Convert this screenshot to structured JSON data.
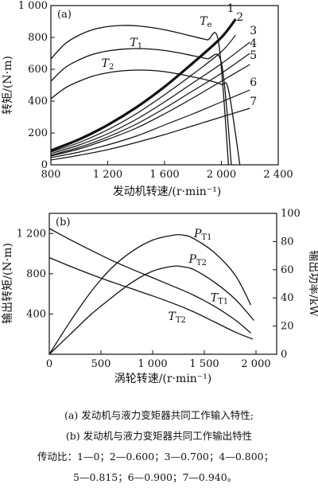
{
  "chart_data": [
    {
      "type": "line",
      "panel_label": "(a)",
      "xlabel": "发动机转速/(r·min⁻¹)",
      "ylabel": "转矩/(N·m)",
      "xlim": [
        800,
        2400
      ],
      "ylim": [
        0,
        1000
      ],
      "xticks": [
        800,
        1200,
        1600,
        2000,
        2400
      ],
      "xtick_labels": [
        "800",
        "1 200",
        "1 600",
        "2 000",
        "2 400"
      ],
      "yticks": [
        0,
        200,
        400,
        600,
        800,
        1000
      ],
      "ytick_labels": [
        "0",
        "200",
        "400",
        "600",
        "800",
        "1 000"
      ],
      "engine_curves": [
        {
          "label": "Te",
          "label_at": [
            1890,
            880
          ],
          "points": [
            [
              800,
              665
            ],
            [
              900,
              760
            ],
            [
              1000,
              815
            ],
            [
              1100,
              850
            ],
            [
              1200,
              868
            ],
            [
              1300,
              875
            ],
            [
              1400,
              873
            ],
            [
              1500,
              863
            ],
            [
              1600,
              848
            ],
            [
              1700,
              828
            ],
            [
              1800,
              806
            ],
            [
              1900,
              785
            ],
            [
              1980,
              770
            ],
            [
              2050,
              0
            ]
          ]
        },
        {
          "label": "T1",
          "label_at": [
            1400,
            745
          ],
          "points": [
            [
              800,
              525
            ],
            [
              900,
              610
            ],
            [
              1000,
              660
            ],
            [
              1100,
              695
            ],
            [
              1200,
              715
            ],
            [
              1300,
              726
            ],
            [
              1400,
              730
            ],
            [
              1500,
              727
            ],
            [
              1600,
              718
            ],
            [
              1700,
              703
            ],
            [
              1800,
              685
            ],
            [
              1900,
              666
            ],
            [
              2000,
              640
            ],
            [
              2070,
              0
            ]
          ]
        },
        {
          "label": "T2",
          "label_at": [
            1200,
            615
          ],
          "points": [
            [
              800,
              415
            ],
            [
              900,
              482
            ],
            [
              1000,
              525
            ],
            [
              1100,
              558
            ],
            [
              1200,
              578
            ],
            [
              1300,
              590
            ],
            [
              1400,
              595
            ],
            [
              1500,
              593
            ],
            [
              1600,
              585
            ],
            [
              1700,
              570
            ],
            [
              1800,
              552
            ],
            [
              1900,
              532
            ],
            [
              2000,
              505
            ],
            [
              2050,
              470
            ],
            [
              2130,
              0
            ]
          ]
        }
      ],
      "load_curves": [
        {
          "label": "1",
          "thick": true,
          "label_at": [
            2065,
            960
          ],
          "points": [
            [
              800,
              90
            ],
            [
              1000,
              160
            ],
            [
              1200,
              250
            ],
            [
              1400,
              360
            ],
            [
              1600,
              490
            ],
            [
              1800,
              640
            ],
            [
              2000,
              800
            ],
            [
              2100,
              915
            ]
          ]
        },
        {
          "label": "2",
          "label_at": [
            2130,
            905
          ],
          "points": [
            [
              800,
              80
            ],
            [
              1000,
              140
            ],
            [
              1200,
              220
            ],
            [
              1400,
              320
            ],
            [
              1600,
              440
            ],
            [
              1800,
              570
            ],
            [
              2000,
              710
            ],
            [
              2100,
              815
            ]
          ]
        },
        {
          "label": "3",
          "label_at": [
            2225,
            820
          ],
          "points": [
            [
              800,
              70
            ],
            [
              1000,
              125
            ],
            [
              1200,
              195
            ],
            [
              1400,
              285
            ],
            [
              1600,
              395
            ],
            [
              1800,
              515
            ],
            [
              2000,
              635
            ],
            [
              2200,
              770
            ]
          ]
        },
        {
          "label": "4",
          "label_at": [
            2225,
            740
          ],
          "points": [
            [
              800,
              60
            ],
            [
              1000,
              110
            ],
            [
              1200,
              175
            ],
            [
              1400,
              255
            ],
            [
              1600,
              355
            ],
            [
              1800,
              465
            ],
            [
              2000,
              575
            ],
            [
              2200,
              700
            ]
          ]
        },
        {
          "label": "5",
          "label_at": [
            2225,
            665
          ],
          "points": [
            [
              800,
              55
            ],
            [
              1000,
              100
            ],
            [
              1200,
              160
            ],
            [
              1400,
              230
            ],
            [
              1600,
              320
            ],
            [
              1800,
              420
            ],
            [
              2000,
              525
            ],
            [
              2200,
              630
            ]
          ]
        },
        {
          "label": "6",
          "label_at": [
            2225,
            495
          ],
          "points": [
            [
              800,
              45
            ],
            [
              1000,
              80
            ],
            [
              1200,
              125
            ],
            [
              1400,
              180
            ],
            [
              1600,
              250
            ],
            [
              1800,
              320
            ],
            [
              2000,
              395
            ],
            [
              2200,
              470
            ]
          ]
        },
        {
          "label": "7",
          "label_at": [
            2225,
            375
          ],
          "points": [
            [
              800,
              30
            ],
            [
              1000,
              60
            ],
            [
              1200,
              95
            ],
            [
              1400,
              140
            ],
            [
              1600,
              190
            ],
            [
              1800,
              245
            ],
            [
              2000,
              300
            ],
            [
              2200,
              355
            ]
          ]
        }
      ]
    },
    {
      "type": "line",
      "panel_label": "(b)",
      "xlabel": "涡轮转速/(r·min⁻¹)",
      "ylabel": "输出转矩/(N·m)",
      "ylabel_right": "输出功率/kW",
      "xlim": [
        0,
        2200
      ],
      "ylim": [
        0,
        1400
      ],
      "ylim_right": [
        0,
        100
      ],
      "xticks": [
        0,
        500,
        1000,
        1500,
        2000
      ],
      "xtick_labels": [
        "0",
        "500",
        "1 000",
        "1 500",
        "2 000"
      ],
      "yticks": [
        400,
        800,
        1200
      ],
      "ytick_labels": [
        "400",
        "800",
        "1 200"
      ],
      "yticks_right": [
        0,
        20,
        40,
        60,
        80,
        100
      ],
      "ytick_labels_right": [
        "0",
        "20",
        "40",
        "60",
        "80",
        "100"
      ],
      "series": [
        {
          "name": "PT1",
          "label_main": "P",
          "label_sub": "T1",
          "axis": "right",
          "label_at": [
            1400,
            83
          ],
          "points": [
            [
              0,
              0
            ],
            [
              200,
              23
            ],
            [
              400,
              44
            ],
            [
              600,
              61
            ],
            [
              800,
              73
            ],
            [
              1000,
              81
            ],
            [
              1200,
              84.5
            ],
            [
              1300,
              84.5
            ],
            [
              1400,
              82
            ],
            [
              1600,
              72
            ],
            [
              1800,
              56
            ],
            [
              1950,
              35
            ]
          ]
        },
        {
          "name": "PT2",
          "label_main": "P",
          "label_sub": "T2",
          "axis": "right",
          "label_at": [
            1350,
            65
          ],
          "points": [
            [
              0,
              0
            ],
            [
              200,
              14
            ],
            [
              400,
              28
            ],
            [
              600,
              40
            ],
            [
              800,
              51
            ],
            [
              1000,
              59
            ],
            [
              1200,
              62.5
            ],
            [
              1300,
              62
            ],
            [
              1400,
              60
            ],
            [
              1600,
              51
            ],
            [
              1800,
              39
            ],
            [
              1980,
              24
            ]
          ]
        },
        {
          "name": "TT1",
          "label_main": "T",
          "label_sub": "T1",
          "axis": "left",
          "label_at": [
            1560,
            525
          ],
          "points": [
            [
              0,
              1250
            ],
            [
              200,
              1140
            ],
            [
              400,
              1035
            ],
            [
              600,
              935
            ],
            [
              800,
              845
            ],
            [
              1000,
              760
            ],
            [
              1200,
              675
            ],
            [
              1400,
              585
            ],
            [
              1600,
              475
            ],
            [
              1800,
              340
            ],
            [
              1950,
              210
            ]
          ]
        },
        {
          "name": "TT2",
          "label_main": "T",
          "label_sub": "T2",
          "axis": "left",
          "label_at": [
            1150,
            340
          ],
          "points": [
            [
              0,
              960
            ],
            [
              200,
              875
            ],
            [
              400,
              795
            ],
            [
              600,
              720
            ],
            [
              800,
              650
            ],
            [
              1000,
              580
            ],
            [
              1200,
              505
            ],
            [
              1400,
              420
            ],
            [
              1600,
              320
            ],
            [
              1800,
              220
            ],
            [
              1970,
              150
            ]
          ]
        }
      ]
    }
  ],
  "caption": {
    "line1": "(a)  发动机与液力变矩器共同工作输入特性;",
    "line2": "(b)  发动机与液力变矩器共同工作输出特性",
    "line3": "传动比：1—0；2—0.600；3—0.700；4—0.800；",
    "line4": "5—0.815；6—0.900；7—0.940。"
  }
}
